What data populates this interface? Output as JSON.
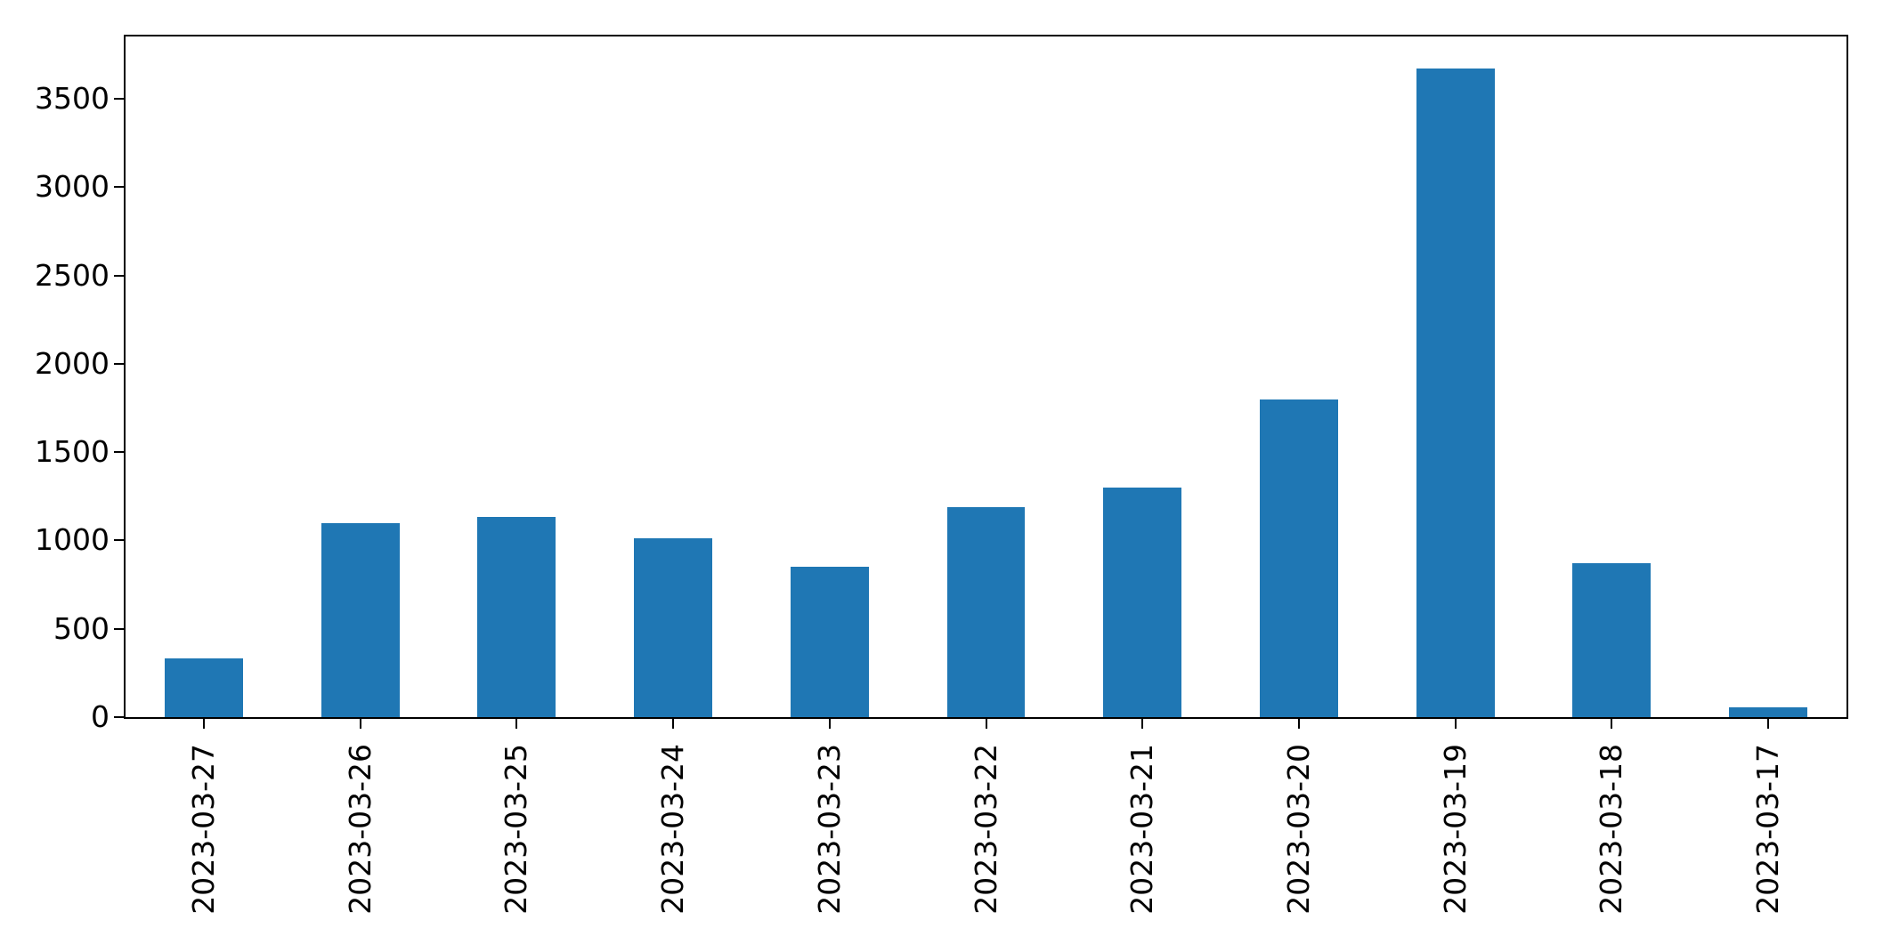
{
  "figure": {
    "background_color": "#ffffff",
    "axis_color": "#000000",
    "bar_color": "#1f77b4"
  },
  "chart_data": {
    "type": "bar",
    "title": "",
    "xlabel": "",
    "ylabel": "",
    "categories": [
      "2023-03-27",
      "2023-03-26",
      "2023-03-25",
      "2023-03-24",
      "2023-03-23",
      "2023-03-22",
      "2023-03-21",
      "2023-03-20",
      "2023-03-19",
      "2023-03-18",
      "2023-03-17"
    ],
    "values": [
      330,
      1100,
      1135,
      1010,
      850,
      1190,
      1300,
      1800,
      3670,
      870,
      55
    ],
    "ylim": [
      0,
      3853
    ],
    "yticks": [
      0,
      500,
      1000,
      1500,
      2000,
      2500,
      3000,
      3500
    ],
    "ytick_labels": [
      "0",
      "500",
      "1000",
      "1500",
      "2000",
      "2500",
      "3000",
      "3500"
    ],
    "xtick_rotation": 90,
    "bar_width_fraction": 0.5,
    "grid": false,
    "legend": null
  }
}
